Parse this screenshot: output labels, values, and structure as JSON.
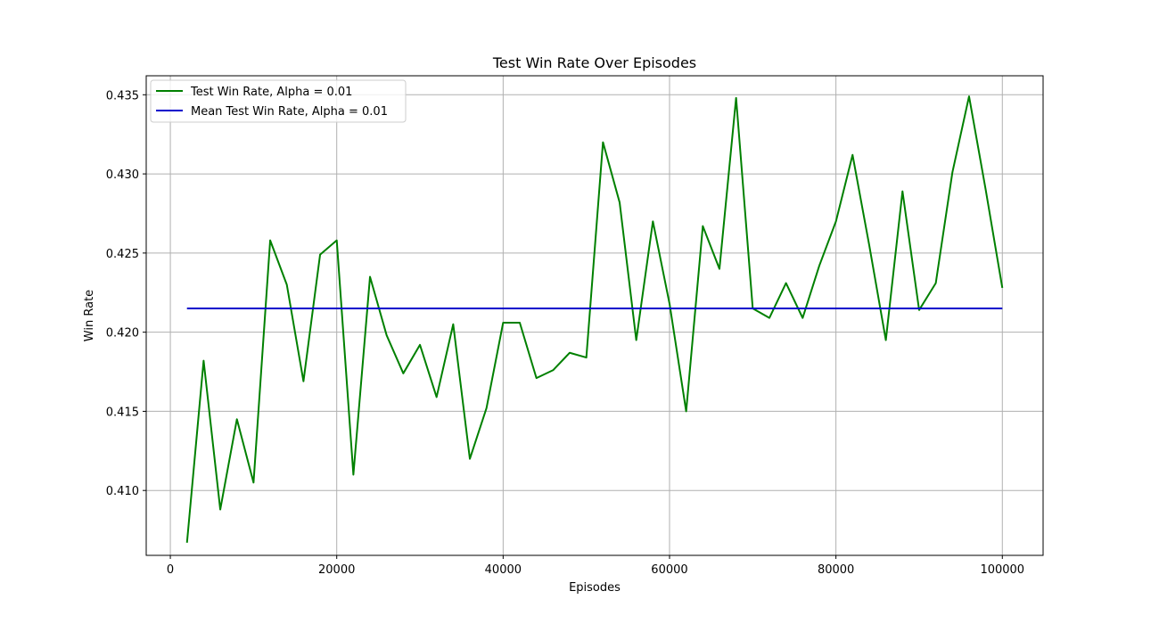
{
  "chart_data": {
    "type": "line",
    "title": "Test Win Rate Over Episodes",
    "xlabel": "Episodes",
    "ylabel": "Win Rate",
    "xlim": [
      -2900,
      104900
    ],
    "ylim": [
      0.4059,
      0.4362
    ],
    "xticks": [
      0,
      20000,
      40000,
      60000,
      80000,
      100000
    ],
    "xtick_labels": [
      "0",
      "20000",
      "40000",
      "60000",
      "80000",
      "100000"
    ],
    "yticks": [
      0.41,
      0.415,
      0.42,
      0.425,
      0.43,
      0.435
    ],
    "ytick_labels": [
      "0.410",
      "0.415",
      "0.420",
      "0.425",
      "0.430",
      "0.435"
    ],
    "grid": true,
    "legend_position": "top-left",
    "x": [
      2000,
      4000,
      6000,
      8000,
      10000,
      12000,
      14000,
      16000,
      18000,
      20000,
      22000,
      24000,
      26000,
      28000,
      30000,
      32000,
      34000,
      36000,
      38000,
      40000,
      42000,
      44000,
      46000,
      48000,
      50000,
      52000,
      54000,
      56000,
      58000,
      60000,
      62000,
      64000,
      66000,
      68000,
      70000,
      72000,
      74000,
      76000,
      78000,
      80000,
      82000,
      84000,
      86000,
      88000,
      90000,
      92000,
      94000,
      96000,
      98000,
      100000
    ],
    "series": [
      {
        "name": "Test Win Rate, Alpha = 0.01",
        "color": "#008000",
        "values": [
          0.4067,
          0.4182,
          0.4088,
          0.4145,
          0.4105,
          0.4258,
          0.423,
          0.4169,
          0.4249,
          0.4258,
          0.411,
          0.4235,
          0.4198,
          0.4174,
          0.4192,
          0.4159,
          0.4205,
          0.412,
          0.4152,
          0.4206,
          0.4206,
          0.4171,
          0.4176,
          0.4187,
          0.4184,
          0.432,
          0.4282,
          0.4195,
          0.427,
          0.4218,
          0.415,
          0.4267,
          0.424,
          0.4348,
          0.4215,
          0.4209,
          0.4231,
          0.4209,
          0.4242,
          0.427,
          0.4312,
          0.4255,
          0.4195,
          0.4289,
          0.4214,
          0.4231,
          0.4301,
          0.4349,
          0.429,
          0.4228
        ]
      },
      {
        "name": "Mean Test Win Rate, Alpha = 0.01",
        "color": "#0000cc",
        "x": [
          2000,
          100000
        ],
        "values": [
          0.4215,
          0.4215
        ]
      }
    ]
  }
}
